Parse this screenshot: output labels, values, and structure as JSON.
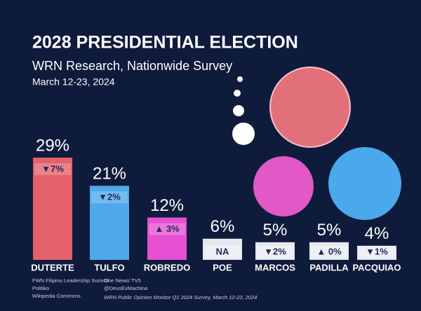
{
  "chart_data": {
    "type": "bar",
    "title": "2028 PRESIDENTIAL ELECTION",
    "subtitle": "WRN Research, Nationwide Survey",
    "date": "March 12-23, 2024",
    "categories": [
      "DUTERTE",
      "TULFO",
      "ROBREDO",
      "POE",
      "MARCOS",
      "PADILLA",
      "PACQUIAO"
    ],
    "values": [
      29,
      21,
      12,
      6,
      5,
      5,
      4
    ],
    "value_labels": [
      "29%",
      "21%",
      "12%",
      "6%",
      "5%",
      "5%",
      "4%"
    ],
    "changes": [
      "▼7%",
      "▼2%",
      "▲ 3%",
      "NA",
      "▼2%",
      "▲ 0%",
      "▼1%"
    ],
    "colors": [
      "#e4606a",
      "#4ea8ea",
      "#e64fd2",
      "#e6e8f0",
      "#e6e8f0",
      "#e6e8f0",
      "#e6e8f0"
    ]
  },
  "footer": {
    "sources_left": [
      "FWN Filipino Leadership Summit",
      "Politiko",
      "Wikipedia Commons"
    ],
    "sources_mid": [
      "One News/ TV5",
      "@DeusExMachina"
    ],
    "note": "WRN Public Opinion Monitor Q1 2024 Survey, March 12-23, 2024"
  }
}
